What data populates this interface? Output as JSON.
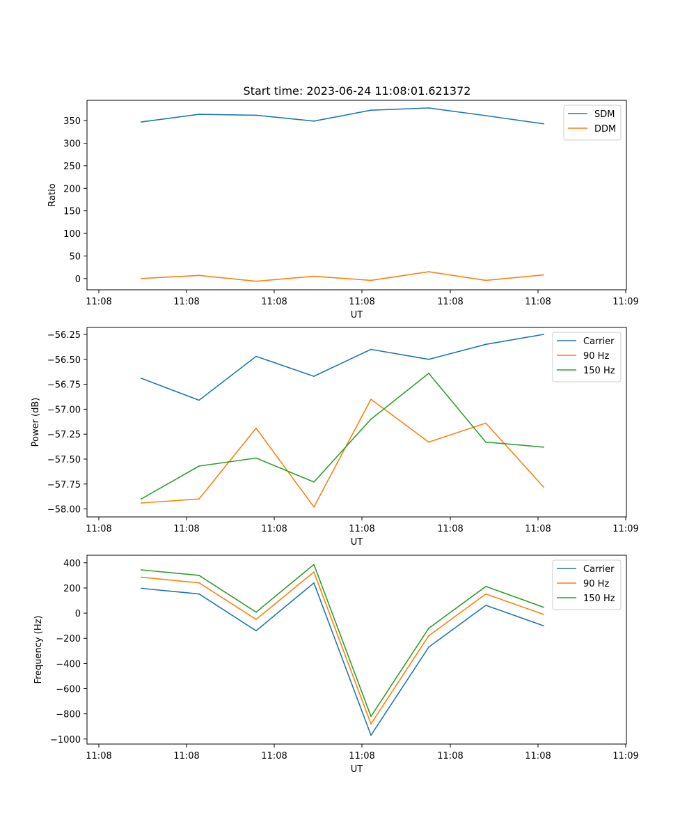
{
  "title": "Start time: 2023-06-24 11:08:01.621372",
  "colors": {
    "blue": "#1f77b4",
    "orange": "#ff7f0e",
    "green": "#2ca02c"
  },
  "x_tick_labels": [
    "11:08",
    "11:08",
    "11:08",
    "11:08",
    "11:08",
    "11:08",
    "11:09"
  ],
  "chart_data": [
    {
      "type": "line",
      "xlabel": "UT",
      "ylabel": "Ratio",
      "ylim": [
        -25,
        395
      ],
      "yticks": [
        0,
        50,
        100,
        150,
        200,
        250,
        300,
        350
      ],
      "ytick_labels": [
        "0",
        "50",
        "100",
        "150",
        "200",
        "250",
        "300",
        "350"
      ],
      "legend_position": "top-right",
      "grid": false,
      "series": [
        {
          "name": "SDM",
          "color": "#1f77b4",
          "values": [
            347,
            364,
            362,
            349,
            373,
            378,
            361,
            343
          ]
        },
        {
          "name": "DDM",
          "color": "#ff7f0e",
          "values": [
            0,
            7,
            -6,
            5,
            -4,
            15,
            -4,
            8
          ]
        }
      ]
    },
    {
      "type": "line",
      "xlabel": "UT",
      "ylabel": "Power (dB)",
      "ylim": [
        -58.08,
        -56.18
      ],
      "yticks": [
        -58.0,
        -57.75,
        -57.5,
        -57.25,
        -57.0,
        -56.75,
        -56.5,
        -56.25
      ],
      "ytick_labels": [
        "−58.00",
        "−57.75",
        "−57.50",
        "−57.25",
        "−57.00",
        "−56.75",
        "−56.50",
        "−56.25"
      ],
      "legend_position": "top-right",
      "grid": false,
      "series": [
        {
          "name": "Carrier",
          "color": "#1f77b4",
          "values": [
            -56.69,
            -56.91,
            -56.47,
            -56.67,
            -56.4,
            -56.5,
            -56.35,
            -56.25
          ]
        },
        {
          "name": "90 Hz",
          "color": "#ff7f0e",
          "values": [
            -57.94,
            -57.9,
            -57.19,
            -57.98,
            -56.9,
            -57.33,
            -57.14,
            -57.78
          ]
        },
        {
          "name": "150 Hz",
          "color": "#2ca02c",
          "values": [
            -57.9,
            -57.57,
            -57.49,
            -57.73,
            -57.1,
            -56.64,
            -57.33,
            -57.38
          ]
        }
      ]
    },
    {
      "type": "line",
      "xlabel": "UT",
      "ylabel": "Frequency (Hz)",
      "ylim": [
        -1040,
        460
      ],
      "yticks": [
        -1000,
        -800,
        -600,
        -400,
        -200,
        0,
        200,
        400
      ],
      "ytick_labels": [
        "−1000",
        "−800",
        "−600",
        "−400",
        "−200",
        "0",
        "200",
        "400"
      ],
      "legend_position": "top-right",
      "grid": false,
      "series": [
        {
          "name": "Carrier",
          "color": "#1f77b4",
          "values": [
            197,
            152,
            -140,
            240,
            -970,
            -270,
            62,
            -100
          ]
        },
        {
          "name": "90 Hz",
          "color": "#ff7f0e",
          "values": [
            285,
            241,
            -50,
            327,
            -880,
            -180,
            152,
            -10
          ]
        },
        {
          "name": "150 Hz",
          "color": "#2ca02c",
          "values": [
            344,
            300,
            8,
            387,
            -820,
            -120,
            212,
            47
          ]
        }
      ]
    }
  ]
}
